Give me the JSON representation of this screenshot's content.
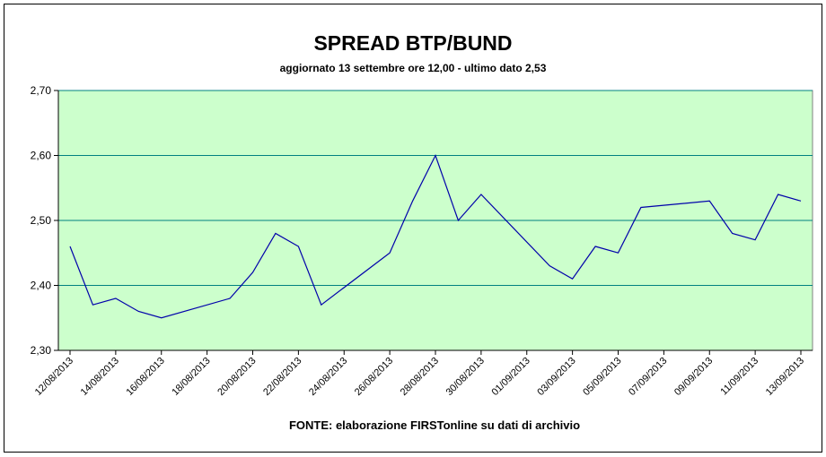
{
  "chart_data": {
    "type": "line",
    "title": "SPREAD BTP/BUND",
    "subtitle": "aggiornato 13 settembre ore 12,00  - ultimo dato 2,53",
    "source": "FONTE: elaborazione FIRSTonline su dati di archivio",
    "x": [
      "12/08/2013",
      "13/08/2013",
      "14/08/2013",
      "15/08/2013",
      "16/08/2013",
      "19/08/2013",
      "20/08/2013",
      "21/08/2013",
      "22/08/2013",
      "23/08/2013",
      "26/08/2013",
      "27/08/2013",
      "28/08/2013",
      "29/08/2013",
      "30/08/2013",
      "02/09/2013",
      "03/09/2013",
      "04/09/2013",
      "05/09/2013",
      "06/09/2013",
      "09/09/2013",
      "10/09/2013",
      "11/09/2013",
      "12/09/2013",
      "13/09/2013"
    ],
    "series": [
      {
        "color": "#0000aa",
        "values": [
          2.46,
          2.37,
          2.38,
          2.36,
          2.35,
          2.38,
          2.42,
          2.48,
          2.46,
          2.37,
          2.45,
          2.53,
          2.6,
          2.5,
          2.54,
          2.43,
          2.41,
          2.46,
          2.45,
          2.52,
          2.53,
          2.48,
          2.47,
          2.54,
          2.53
        ]
      }
    ],
    "xlim": [
      "12/08/2013",
      "13/09/2013"
    ],
    "xticks": [
      "12/08/2013",
      "14/08/2013",
      "16/08/2013",
      "18/08/2013",
      "20/08/2013",
      "22/08/2013",
      "24/08/2013",
      "26/08/2013",
      "28/08/2013",
      "30/08/2013",
      "01/09/2013",
      "03/09/2013",
      "05/09/2013",
      "07/09/2013",
      "09/09/2013",
      "11/09/2013",
      "13/09/2013"
    ],
    "ylim": [
      2.3,
      2.7
    ],
    "yticks": [
      {
        "value": 2.3,
        "label": "2,30"
      },
      {
        "value": 2.4,
        "label": "2,40"
      },
      {
        "value": 2.5,
        "label": "2,50"
      },
      {
        "value": 2.6,
        "label": "2,60"
      },
      {
        "value": 2.7,
        "label": "2,70"
      }
    ],
    "grid": true,
    "background": "#ccffcc"
  }
}
